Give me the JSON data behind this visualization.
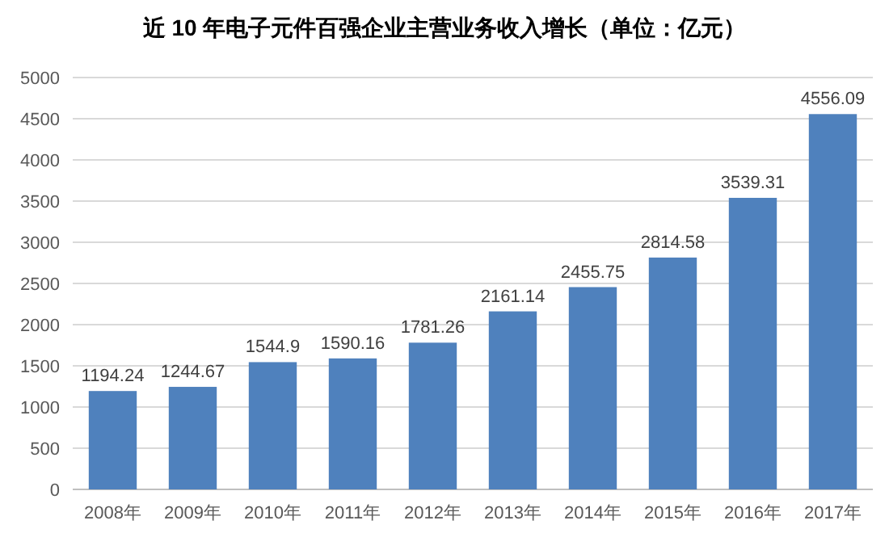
{
  "chart_data": {
    "type": "bar",
    "title": "近 10 年电子元件百强企业主营业务收入增长（单位：亿元）",
    "categories": [
      "2008年",
      "2009年",
      "2010年",
      "2011年",
      "2012年",
      "2013年",
      "2014年",
      "2015年",
      "2016年",
      "2017年"
    ],
    "values": [
      1194.24,
      1244.67,
      1544.9,
      1590.16,
      1781.26,
      2161.14,
      2455.75,
      2814.58,
      3539.31,
      4556.09
    ],
    "color": "#4f81bd",
    "ylim": [
      0,
      5000
    ],
    "yticks": [
      0,
      500,
      1000,
      1500,
      2000,
      2500,
      3000,
      3500,
      4000,
      4500,
      5000
    ],
    "grid": "y",
    "data_labels": true
  }
}
